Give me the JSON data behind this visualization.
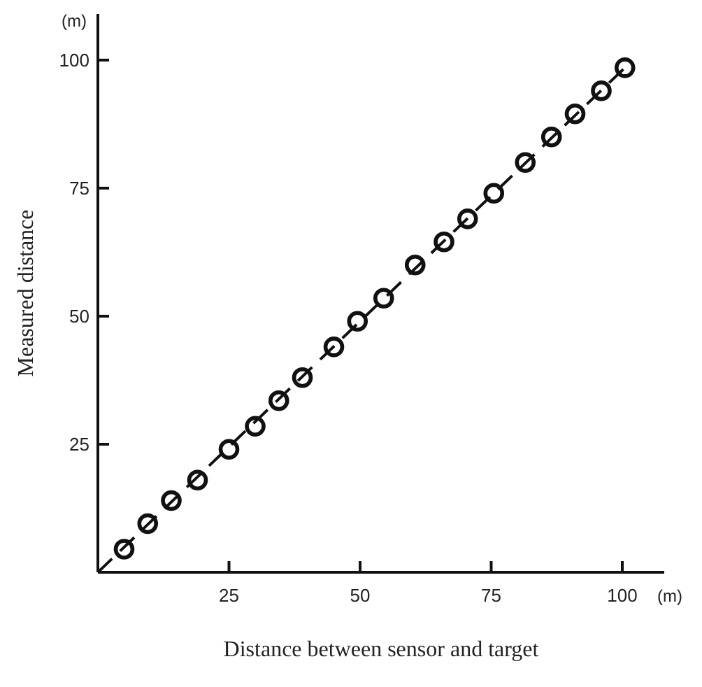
{
  "chart_data": {
    "type": "scatter",
    "xlabel": "Distance between sensor and target",
    "ylabel": "Measured distance",
    "annotations": [
      "(m)",
      "(m)"
    ],
    "x": [
      5,
      9.5,
      14,
      19,
      25,
      30,
      34.5,
      39,
      45,
      49.5,
      54.5,
      60.5,
      66,
      70.5,
      75.5,
      81.5,
      86.5,
      91,
      96,
      100.5
    ],
    "series": [
      {
        "color": "#111111",
        "marker": "circle",
        "values": [
          4.5,
          9.5,
          14,
          18,
          24,
          28.5,
          33.5,
          38,
          44,
          49,
          53.5,
          60,
          64.5,
          69,
          74,
          80,
          85,
          89.5,
          94,
          98.5
        ]
      },
      {
        "type": "line",
        "color": "#111111",
        "line_style": "dashed",
        "marker": "none",
        "x": [
          0,
          100.5
        ],
        "values": [
          0,
          98.5
        ]
      }
    ],
    "xlim": [
      0,
      108
    ],
    "ylim": [
      0,
      109
    ],
    "xticks": [
      25,
      50,
      75,
      100
    ],
    "yticks": [
      25,
      50,
      75,
      100
    ],
    "grid": false,
    "legend": false
  }
}
